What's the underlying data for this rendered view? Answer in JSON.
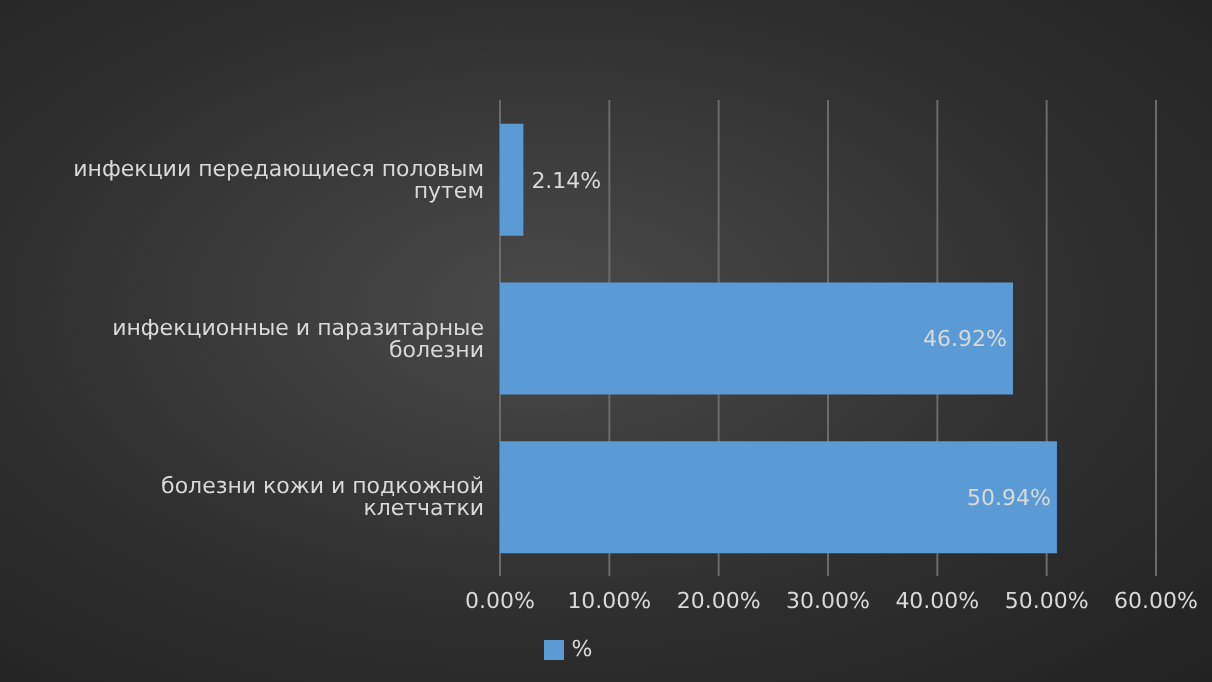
{
  "chart_data": {
    "type": "bar",
    "orientation": "horizontal",
    "categories": [
      "инфекции передающиеся половым путем",
      "инфекционные и паразитарные болезни",
      "болезни кожи и подкожной клетчатки"
    ],
    "series": [
      {
        "name": "%",
        "color": "#5b9bd5",
        "values": [
          2.14,
          46.92,
          50.94
        ],
        "value_labels": [
          "2.14%",
          "46.92%",
          "50.94%"
        ]
      }
    ],
    "xlim": [
      0,
      60
    ],
    "xticks": [
      {
        "value": 0,
        "label": "0.00%"
      },
      {
        "value": 10,
        "label": "10.00%"
      },
      {
        "value": 20,
        "label": "20.00%"
      },
      {
        "value": 30,
        "label": "30.00%"
      },
      {
        "value": 40,
        "label": "40.00%"
      },
      {
        "value": 50,
        "label": "50.00%"
      },
      {
        "value": 60,
        "label": "60.00%"
      }
    ],
    "grid": "x",
    "legend": "bottom"
  }
}
